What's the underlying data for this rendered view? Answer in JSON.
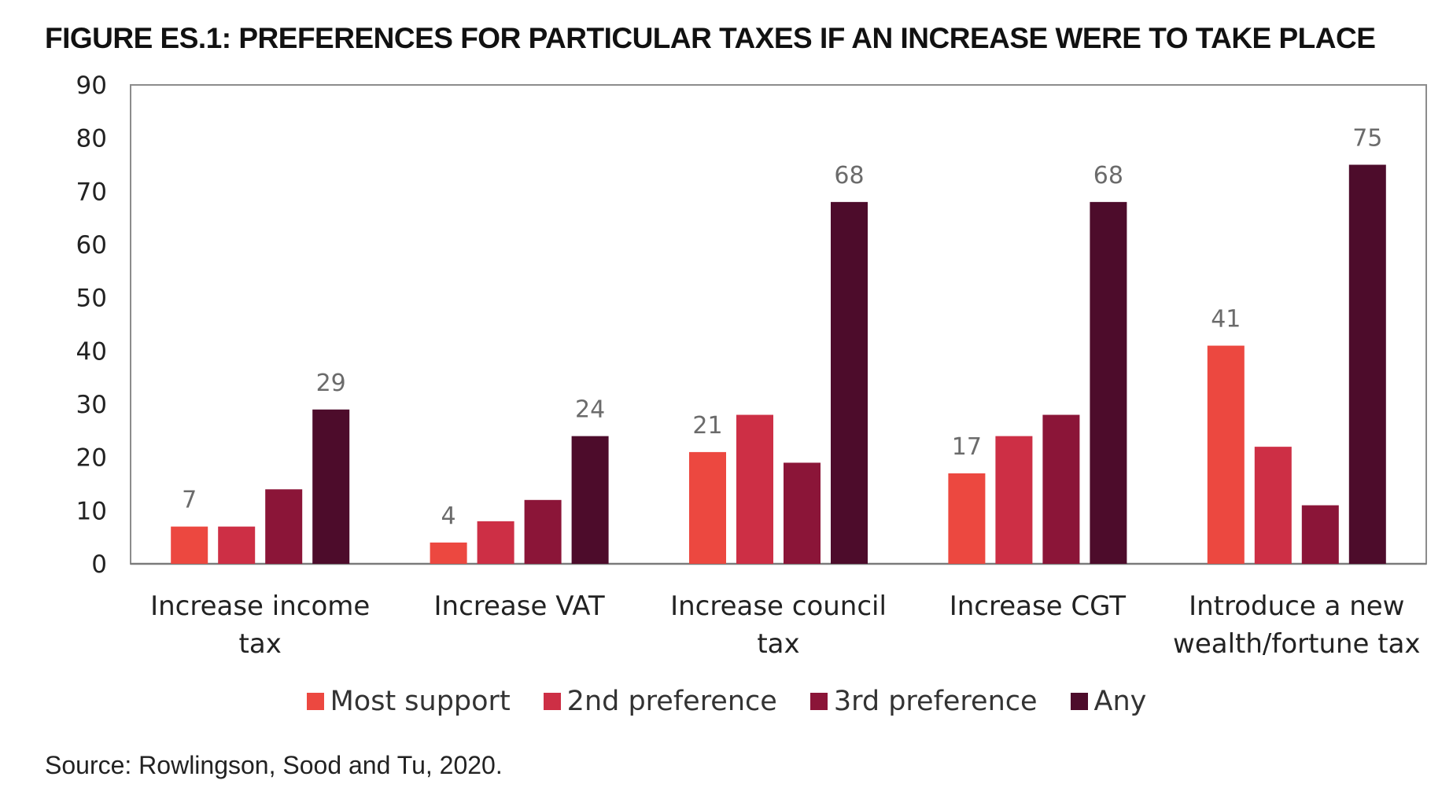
{
  "title": "FIGURE ES.1: PREFERENCES FOR PARTICULAR TAXES IF AN INCREASE WERE TO TAKE PLACE",
  "source": "Source: Rowlingson, Sood and Tu, 2020.",
  "chart_data": {
    "type": "bar",
    "title": "FIGURE ES.1: PREFERENCES FOR PARTICULAR TAXES IF AN INCREASE WERE TO TAKE PLACE",
    "xlabel": "",
    "ylabel": "",
    "ylim": [
      0,
      90
    ],
    "yticks": [
      "0",
      "10",
      "20",
      "30",
      "40",
      "50",
      "60",
      "70",
      "80",
      "90"
    ],
    "grid": false,
    "legend_position": "bottom",
    "categories": [
      [
        "Increase income",
        "tax"
      ],
      [
        "Increase VAT"
      ],
      [
        "Increase council",
        "tax"
      ],
      [
        "Increase CGT"
      ],
      [
        "Introduce a new",
        "wealth/fortune tax"
      ]
    ],
    "series": [
      {
        "name": "Most support",
        "color": "#ec4840",
        "values": [
          7,
          4,
          21,
          17,
          41
        ],
        "labels": [
          "7",
          "4",
          "21",
          "17",
          "41"
        ]
      },
      {
        "name": "2nd preference",
        "color": "#cd2f45",
        "values": [
          7,
          8,
          28,
          24,
          22
        ],
        "labels": [
          "",
          "",
          "",
          "",
          ""
        ]
      },
      {
        "name": "3rd preference",
        "color": "#8b1538",
        "values": [
          14,
          12,
          19,
          28,
          11
        ],
        "labels": [
          "",
          "",
          "",
          "",
          ""
        ]
      },
      {
        "name": "Any",
        "color": "#4d0c2b",
        "values": [
          29,
          24,
          68,
          68,
          75
        ],
        "labels": [
          "29",
          "24",
          "68",
          "68",
          "75"
        ]
      }
    ]
  }
}
